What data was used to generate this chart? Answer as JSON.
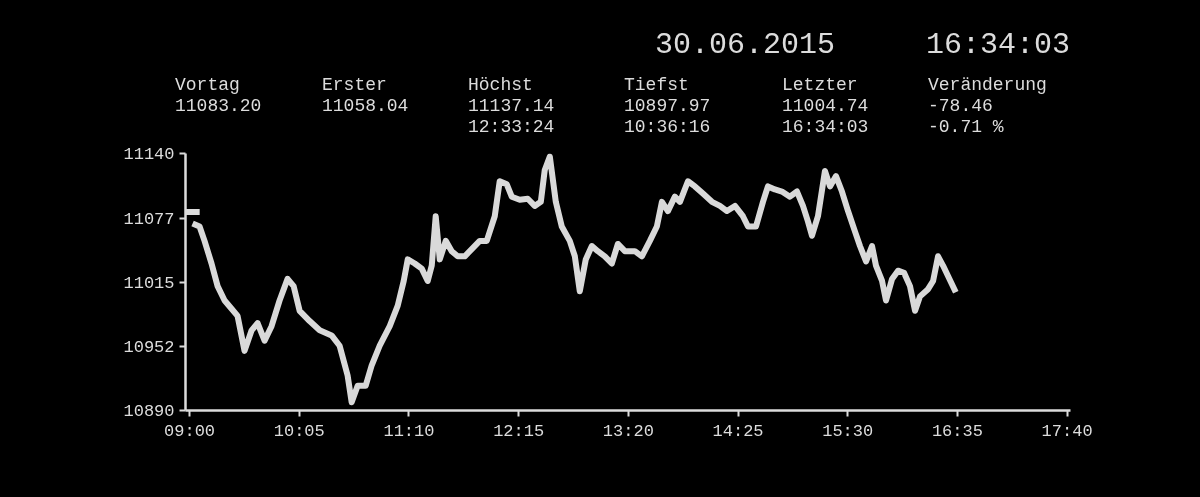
{
  "chart_data": {
    "type": "line",
    "title": "30.06.2015",
    "subtitle": "16:34:03",
    "annotations": [
      "Vortag\n11083.20",
      "Erster\n11058.04",
      "Höchst\n11137.14\n12:33:24",
      "Tiefst\n10897.97\n10:36:16",
      "Letzter\n11004.74\n16:34:03",
      "Veränderung\n-78.46\n-0.71 %"
    ],
    "series": [
      {
        "color": "#d9d9d9",
        "x": [
          9.03,
          9.099,
          9.148,
          9.217,
          9.277,
          9.346,
          9.415,
          9.474,
          9.543,
          9.613,
          9.672,
          9.741,
          9.81,
          9.889,
          9.968,
          10.028,
          10.087,
          10.186,
          10.285,
          10.403,
          10.482,
          10.561,
          10.601,
          10.66,
          10.739,
          10.799,
          10.878,
          10.977,
          11.056,
          11.115,
          11.155,
          11.224,
          11.293,
          11.352,
          11.392,
          11.431,
          11.471,
          11.53,
          11.589,
          11.648,
          11.718,
          11.787,
          11.866,
          11.935,
          12.014,
          12.063,
          12.133,
          12.182,
          12.261,
          12.34,
          12.409,
          12.469,
          12.508,
          12.558,
          12.617,
          12.676,
          12.755,
          12.805,
          12.854,
          12.913,
          12.973,
          13.032,
          13.101,
          13.17,
          13.23,
          13.299,
          13.398,
          13.467,
          13.546,
          13.615,
          13.665,
          13.724,
          13.793,
          13.843,
          13.922,
          13.991,
          14.07,
          14.159,
          14.238,
          14.307,
          14.386,
          14.465,
          14.515,
          14.594,
          14.663,
          14.712,
          14.781,
          14.85,
          14.929,
          14.999,
          15.058,
          15.107,
          15.147,
          15.206,
          15.275,
          15.325,
          15.384,
          15.443,
          15.503,
          15.572,
          15.621,
          15.681,
          15.74,
          15.779,
          15.839,
          15.878,
          15.938,
          15.997,
          16.056,
          16.115,
          16.165,
          16.214,
          16.293,
          16.343,
          16.392,
          16.441,
          16.567
        ],
        "values": [
          11072,
          11069,
          11055,
          11033,
          11011,
          10997,
          10989,
          10982,
          10948,
          10968,
          10975,
          10958,
          10972,
          10997,
          11018,
          11011,
          10987,
          10977,
          10968,
          10963,
          10953,
          10924,
          10898,
          10914,
          10914,
          10934,
          10953,
          10972,
          10992,
          11016,
          11037,
          11033,
          11028,
          11016,
          11031,
          11079,
          11037,
          11055,
          11045,
          11040,
          11040,
          11047,
          11055,
          11055,
          11079,
          11113,
          11110,
          11098,
          11095,
          11096,
          11089,
          11093,
          11124,
          11137,
          11093,
          11069,
          11055,
          11040,
          11006,
          11037,
          11050,
          11045,
          11040,
          11033,
          11052,
          11045,
          11045,
          11040,
          11055,
          11069,
          11093,
          11084,
          11098,
          11093,
          11113,
          11108,
          11101,
          11093,
          11089,
          11084,
          11089,
          11079,
          11069,
          11069,
          11093,
          11108,
          11105,
          11103,
          11098,
          11103,
          11089,
          11074,
          11060,
          11079,
          11123,
          11108,
          11118,
          11103,
          11084,
          11064,
          11050,
          11035,
          11050,
          11031,
          11016,
          10997,
          11018,
          11026,
          11024,
          11011,
          10987,
          11001,
          11008,
          11016,
          11040,
          11031,
          11005
        ]
      },
      {
        "color": "#dcdcdc",
        "x": [
          8.96,
          9.1
        ],
        "values": [
          11083,
          11083
        ]
      }
    ],
    "xlim": [
      8.96,
      17.7
    ],
    "ylim": [
      10890,
      11140
    ],
    "xticks": [
      {
        "value": 9,
        "label": "09:00"
      },
      {
        "value": 10.0833,
        "label": "10:05"
      },
      {
        "value": 11.1667,
        "label": "11:10"
      },
      {
        "value": 12.25,
        "label": "12:15"
      },
      {
        "value": 13.3333,
        "label": "13:20"
      },
      {
        "value": 14.4167,
        "label": "14:25"
      },
      {
        "value": 15.5,
        "label": "15:30"
      },
      {
        "value": 16.5833,
        "label": "16:35"
      },
      {
        "value": 17.6667,
        "label": "17:40"
      }
    ],
    "yticks": [
      10890,
      10952,
      11015,
      11077,
      11140
    ],
    "grid": false,
    "marker": "none",
    "line_style": "solid"
  }
}
